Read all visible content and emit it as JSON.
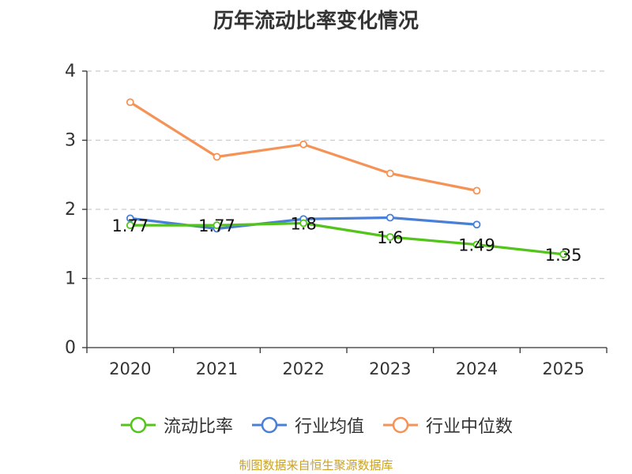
{
  "chart_data": {
    "type": "line",
    "title": "历年流动比率变化情况",
    "categories": [
      "2020",
      "2021",
      "2022",
      "2023",
      "2024",
      "2025"
    ],
    "ylim": [
      0,
      4
    ],
    "yticks": [
      0,
      1,
      2,
      3,
      4
    ],
    "grid": true,
    "legend_position": "bottom",
    "series": [
      {
        "name": "流动比率",
        "color": "#52c41a",
        "values": [
          1.77,
          1.77,
          1.8,
          1.6,
          1.49,
          1.35
        ],
        "labels": [
          "1.77",
          "1.77",
          "1.8",
          "1.6",
          "1.49",
          "1.35"
        ]
      },
      {
        "name": "行业均值",
        "color": "#4a7fd6",
        "values": [
          1.87,
          1.72,
          1.86,
          1.88,
          1.78,
          null
        ]
      },
      {
        "name": "行业中位数",
        "color": "#f59356",
        "values": [
          3.55,
          2.76,
          2.94,
          2.52,
          2.27,
          null
        ]
      }
    ]
  },
  "footer": {
    "source": "制图数据来自恒生聚源数据库"
  }
}
